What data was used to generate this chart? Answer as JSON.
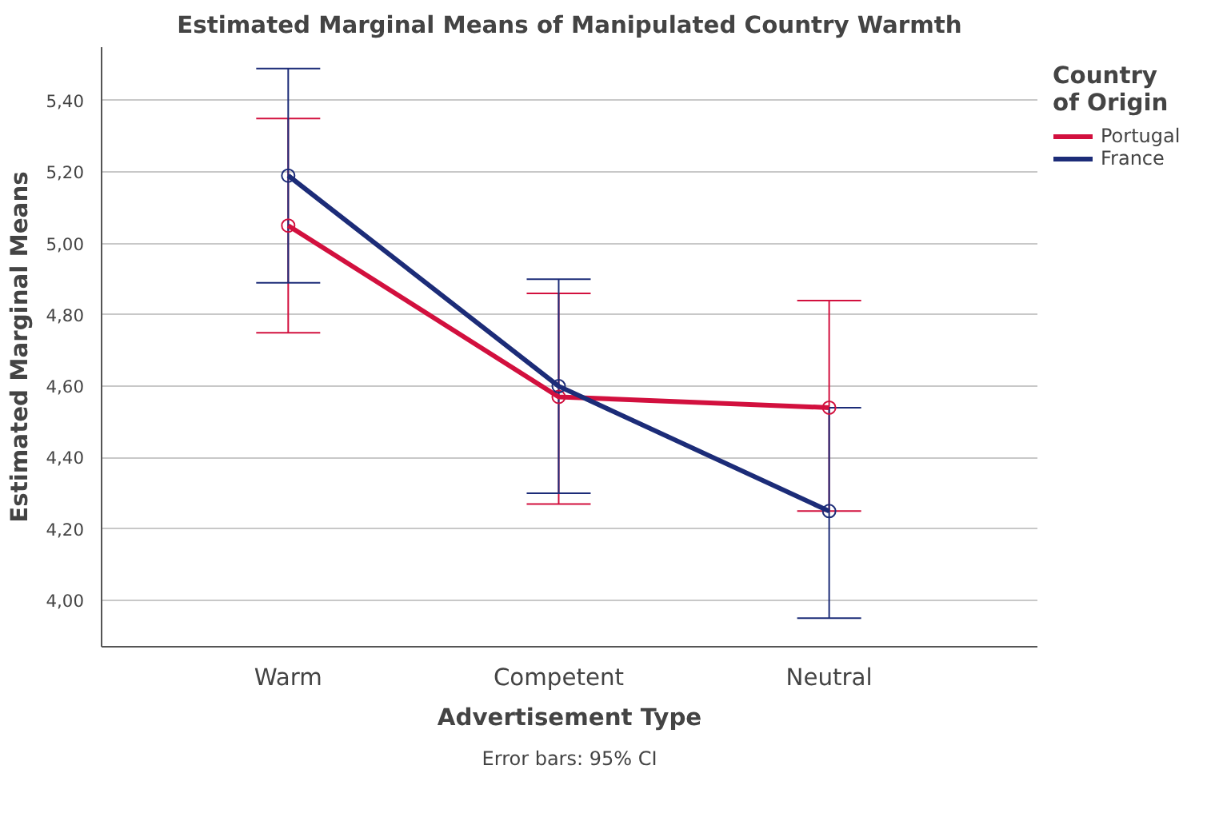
{
  "chart_data": {
    "type": "line",
    "title": "Estimated Marginal Means of Manipulated Country Warmth",
    "xlabel": "Advertisement Type",
    "ylabel": "Estimated Marginal Means",
    "legend_title": "Country of Origin",
    "categories": [
      "Warm",
      "Competent",
      "Neutral"
    ],
    "series": [
      {
        "name": "Portugal",
        "color": "#d2103e",
        "values": [
          5.05,
          4.57,
          4.54
        ],
        "errors": [
          [
            4.75,
            5.35
          ],
          [
            4.27,
            4.86
          ],
          [
            4.25,
            4.84
          ]
        ]
      },
      {
        "name": "France",
        "color": "#1c2c78",
        "values": [
          5.19,
          4.6,
          4.25
        ],
        "errors": [
          [
            4.89,
            5.49
          ],
          [
            4.3,
            4.9
          ],
          [
            3.95,
            4.54
          ]
        ]
      }
    ],
    "ylim": [
      3.87,
      5.55
    ],
    "yticks": [
      {
        "value": 4.0,
        "label": "4,00"
      },
      {
        "value": 4.2,
        "label": "4,20"
      },
      {
        "value": 4.4,
        "label": "4,40"
      },
      {
        "value": 4.6,
        "label": "4,60"
      },
      {
        "value": 4.8,
        "label": "4,80"
      },
      {
        "value": 5.0,
        "label": "5,00"
      },
      {
        "value": 5.2,
        "label": "5,20"
      },
      {
        "value": 5.4,
        "label": "5,40"
      }
    ],
    "grid": "y",
    "legend": "top right",
    "marker": "circle",
    "line_style": "solid",
    "annotations": [
      "Error bars: 95% CI"
    ]
  }
}
